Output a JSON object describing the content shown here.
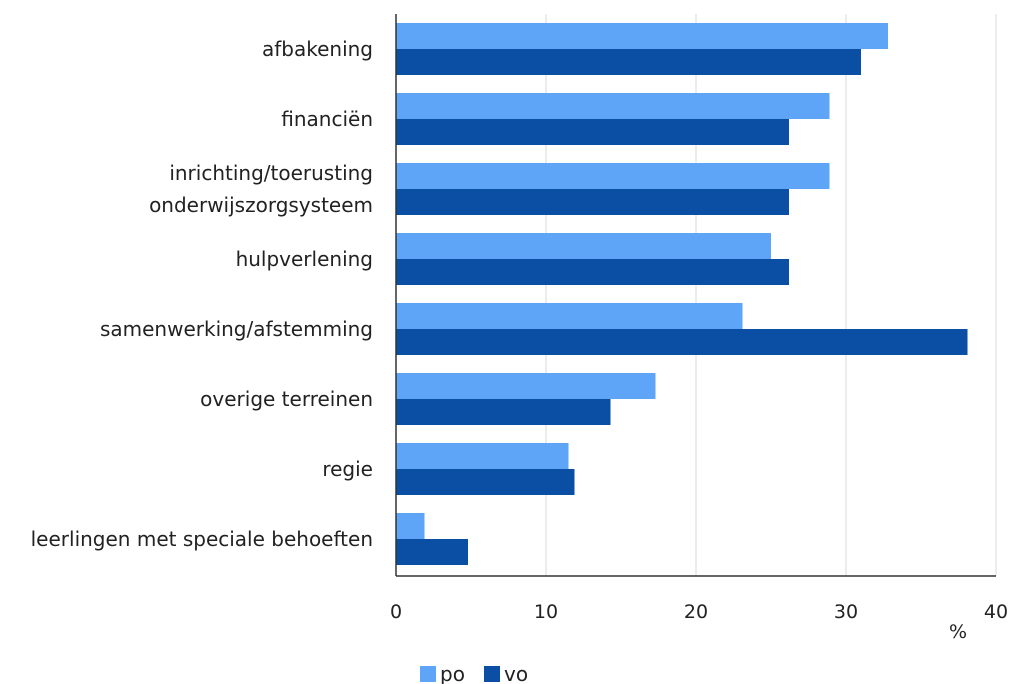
{
  "chart_data": {
    "type": "bar",
    "orientation": "horizontal",
    "categories": [
      [
        "afbakening"
      ],
      [
        "financiën"
      ],
      [
        "inrichting/toerusting ",
        "onderwijszorgsysteem"
      ],
      [
        "hulpverlening"
      ],
      [
        "samenwerking/afstemming"
      ],
      [
        "overige terreinen"
      ],
      [
        "regie"
      ],
      [
        "leerlingen met speciale behoeften"
      ]
    ],
    "series": [
      {
        "name": "po",
        "color": "#5ea5f8",
        "values": [
          32.8,
          28.9,
          28.9,
          25.0,
          23.1,
          17.3,
          11.5,
          1.9
        ]
      },
      {
        "name": "vo",
        "color": "#0a4fa3",
        "values": [
          31.0,
          26.2,
          26.2,
          26.2,
          38.1,
          14.3,
          11.9,
          4.8
        ]
      }
    ],
    "xlim": [
      0,
      40
    ],
    "xticks": [
      "0",
      "10",
      "20",
      "30",
      "40"
    ],
    "xlabel": "%",
    "grid": "vertical",
    "legend_position": "bottom"
  }
}
